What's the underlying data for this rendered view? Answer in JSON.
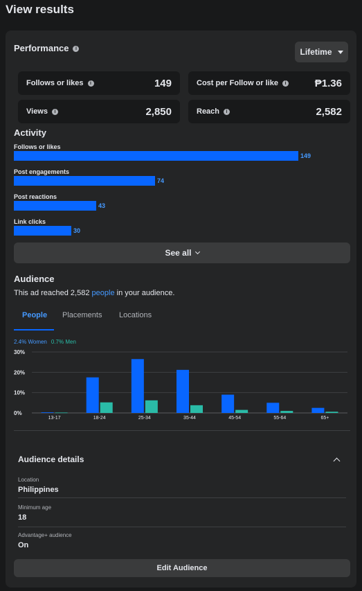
{
  "header": {
    "title": "View results"
  },
  "performance": {
    "title": "Performance",
    "period": "Lifetime",
    "metrics": [
      {
        "label": "Follows or likes",
        "value": "149"
      },
      {
        "label": "Cost per Follow or like",
        "value": "₱1.36"
      },
      {
        "label": "Views",
        "value": "2,850"
      },
      {
        "label": "Reach",
        "value": "2,582"
      }
    ]
  },
  "activity": {
    "title": "Activity",
    "items": [
      {
        "label": "Follows or likes",
        "value": 149
      },
      {
        "label": "Post engagements",
        "value": 74
      },
      {
        "label": "Post reactions",
        "value": 43
      },
      {
        "label": "Link clicks",
        "value": 30
      }
    ],
    "see_all": "See all"
  },
  "audience": {
    "title": "Audience",
    "reach_prefix": "This ad reached 2,582 ",
    "reach_link": "people",
    "reach_suffix": " in your audience.",
    "tabs": [
      "People",
      "Placements",
      "Locations"
    ],
    "legend_women": "2.4% Women",
    "legend_men": "0.7% Men"
  },
  "chart_data": {
    "type": "bar",
    "categories": [
      "13-17",
      "18-24",
      "25-34",
      "35-44",
      "45-54",
      "55-64",
      "65+"
    ],
    "series": [
      {
        "name": "Women",
        "color": "#0866ff",
        "values": [
          0.3,
          17.5,
          26.5,
          21.2,
          9.0,
          5.0,
          2.5
        ]
      },
      {
        "name": "Men",
        "color": "#2abba7",
        "values": [
          0.2,
          5.2,
          6.2,
          3.8,
          1.5,
          1.0,
          0.6
        ]
      }
    ],
    "yticks": [
      "0%",
      "10%",
      "20%",
      "30%"
    ],
    "ylim": [
      0,
      30
    ]
  },
  "details": {
    "title": "Audience details",
    "rows": [
      {
        "label": "Location",
        "value": "Philippines"
      },
      {
        "label": "Minimum age",
        "value": "18"
      },
      {
        "label": "Advantage+ audience",
        "value": "On"
      }
    ],
    "edit_button": "Edit Audience"
  }
}
